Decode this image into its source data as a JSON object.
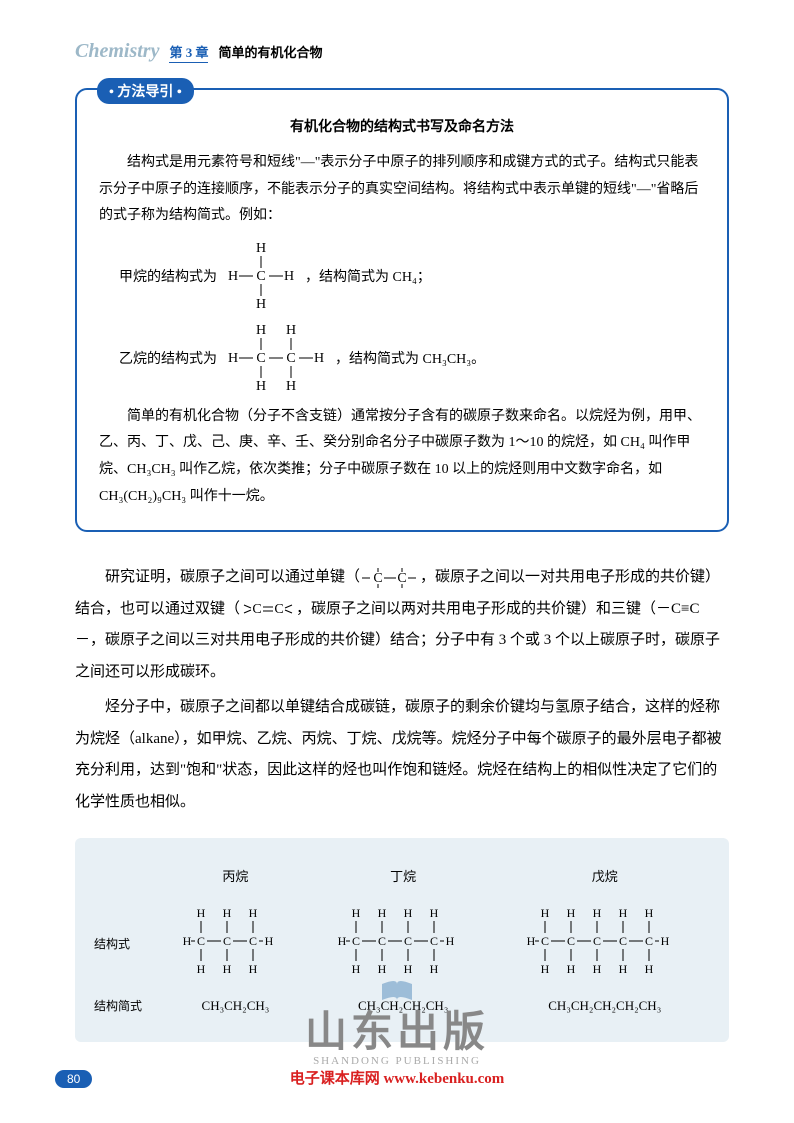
{
  "header": {
    "chemistry": "Chemistry",
    "chapter": "第 3 章",
    "title": "简单的有机化合物"
  },
  "methodBox": {
    "badge": "方法导引",
    "title": "有机化合物的结构式书写及命名方法",
    "p1": "结构式是用元素符号和短线\"—\"表示分子中原子的排列顺序和成键方式的式子。结构式只能表示分子中原子的连接顺序，不能表示分子的真实空间结构。将结构式中表示单键的短线\"—\"省略后的式子称为结构简式。例如：",
    "methane_label_pre": "甲烷的结构式为",
    "methane_label_post": "，结构简式为 CH₄；",
    "ethane_label_pre": "乙烷的结构式为",
    "ethane_label_post": "，结构简式为 CH₃CH₃。",
    "p2": "简单的有机化合物（分子不含支链）通常按分子含有的碳原子数来命名。以烷烃为例，用甲、乙、丙、丁、戊、己、庚、辛、壬、癸分别命名分子中碳原子数为 1～10 的烷烃，如 CH₄ 叫作甲烷、CH₃CH₃ 叫作乙烷，依次类推；分子中碳原子数在 10 以上的烷烃则用中文数字命名，如 CH₃(CH₂)₉CH₃ 叫作十一烷。"
  },
  "body": {
    "p1_a": "研究证明，碳原子之间可以通过单键（",
    "p1_b": "，碳原子之间以一对共用电子形成的共价键）结合，也可以通过双键（",
    "p1_c": "，碳原子之间以两对共用电子形成的共价键）和三键（－C≡C－，碳原子之间以三对共用电子形成的共价键）结合；分子中有 3 个或 3 个以上碳原子时，碳原子之间还可以形成碳环。",
    "p2": "烃分子中，碳原子之间都以单键结合成碳链，碳原子的剩余价键均与氢原子结合，这样的烃称为烷烃（alkane），如甲烷、乙烷、丙烷、丁烷、戊烷等。烷烃分子中每个碳原子的最外层电子都被充分利用，达到\"饱和\"状态，因此这样的烃也叫作饱和链烃。烷烃在结构上的相似性决定了它们的化学性质也相似。"
  },
  "table": {
    "headers": [
      "丙烷",
      "丁烷",
      "戊烷"
    ],
    "row1_label": "结构式",
    "row2_label": "结构简式",
    "formulas": [
      "CH₃CH₂CH₃",
      "CH₃CH₂CH₂CH₃",
      "CH₃CH₂CH₂CH₂CH₃"
    ],
    "carbons": [
      3,
      4,
      5
    ]
  },
  "watermark": {
    "main": "山东出版",
    "sub": "SHANDONG PUBLISHING",
    "link_a": "电子课本库网",
    "link_b": "www.kebenku.com"
  },
  "pageNum": "80",
  "colors": {
    "primary": "#1a5fb4",
    "text": "#000000",
    "box_bg": "#e8f0f5",
    "wm_gray": "#888888",
    "wm_red": "#d92020",
    "chem_gray": "#9db8c8"
  }
}
